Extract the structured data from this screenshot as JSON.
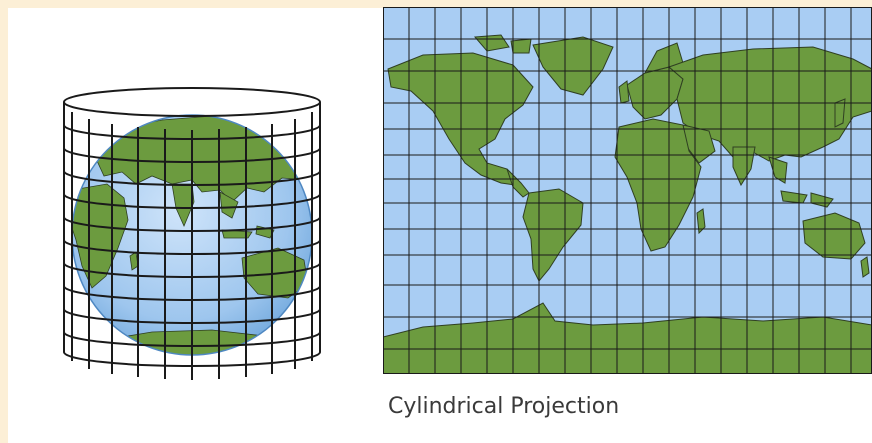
{
  "caption": "Cylindrical Projection",
  "colors": {
    "page_background": "#fcefd6",
    "panel_background": "#ffffff",
    "ocean": "#a9cdf3",
    "ocean_deep": "#7fb3e3",
    "land": "#6c9b3f",
    "land_edge": "#2f3f22",
    "grid_line": "#1a1a1a",
    "caption_text": "#3a3a3a"
  },
  "icons": [
    "globe-in-cylinder-illustration",
    "world-map-projection"
  ]
}
